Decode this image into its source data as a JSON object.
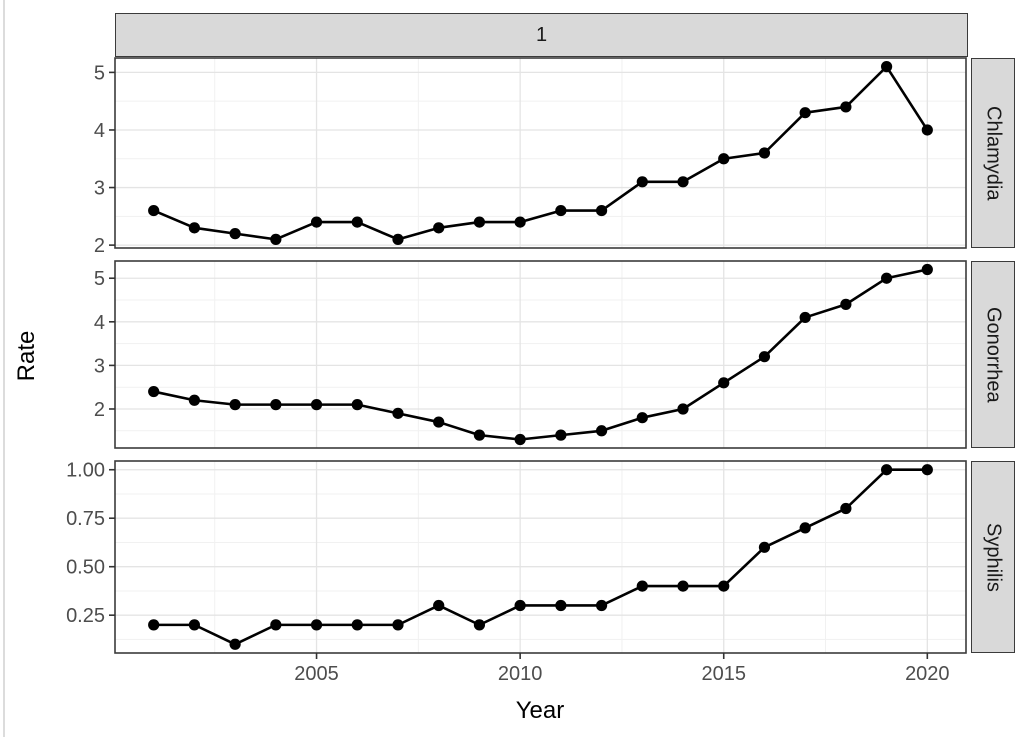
{
  "figure": {
    "viewer_background": "#ffffff",
    "frame_line_color": "#dcdcdc"
  },
  "chart_data": {
    "type": "line",
    "title": "",
    "facet_column_label": "1",
    "xlabel": "Year",
    "ylabel": "Rate",
    "legend": "none",
    "grid": "on",
    "x": [
      2001,
      2002,
      2003,
      2004,
      2005,
      2006,
      2007,
      2008,
      2009,
      2010,
      2011,
      2012,
      2013,
      2014,
      2015,
      2016,
      2017,
      2018,
      2019,
      2020
    ],
    "x_ticks": [
      2005,
      2010,
      2015,
      2020
    ],
    "x_tick_labels": [
      "2005",
      "2010",
      "2015",
      "2020"
    ],
    "x_minor_ticks": [
      2002.5,
      2007.5,
      2012.5,
      2017.5
    ],
    "xlim": [
      2000.05,
      2020.95
    ],
    "series_style": {
      "color": "#000000",
      "point_shape": "circle"
    },
    "facets": [
      {
        "label": "Chlamydia",
        "values": [
          2.6,
          2.3,
          2.2,
          2.1,
          2.4,
          2.4,
          2.1,
          2.3,
          2.4,
          2.4,
          2.6,
          2.6,
          3.1,
          3.1,
          3.5,
          3.6,
          4.3,
          4.4,
          5.1,
          4.0
        ],
        "y_ticks": [
          2,
          3,
          4,
          5
        ],
        "y_tick_labels": [
          "2",
          "3",
          "4",
          "5"
        ],
        "y_minor_ticks": [
          2.5,
          3.5,
          4.5
        ],
        "ylim": [
          1.95,
          5.25
        ]
      },
      {
        "label": "Gonorrhea",
        "values": [
          2.4,
          2.2,
          2.1,
          2.1,
          2.1,
          2.1,
          1.9,
          1.7,
          1.4,
          1.3,
          1.4,
          1.5,
          1.8,
          2.0,
          2.6,
          3.2,
          4.1,
          4.4,
          5.0,
          5.2
        ],
        "y_ticks": [
          2,
          3,
          4,
          5
        ],
        "y_tick_labels": [
          "2",
          "3",
          "4",
          "5"
        ],
        "y_minor_ticks": [
          1.5,
          2.5,
          3.5,
          4.5
        ],
        "ylim": [
          1.105,
          5.395
        ]
      },
      {
        "label": "Syphilis",
        "values": [
          0.2,
          0.2,
          0.1,
          0.2,
          0.2,
          0.2,
          0.2,
          0.3,
          0.2,
          0.3,
          0.3,
          0.3,
          0.4,
          0.4,
          0.4,
          0.6,
          0.7,
          0.8,
          1.0,
          1.0
        ],
        "y_ticks": [
          0.25,
          0.5,
          0.75,
          1.0
        ],
        "y_tick_labels": [
          "0.25",
          "0.50",
          "0.75",
          "1.00"
        ],
        "y_minor_ticks": [
          0.125,
          0.375,
          0.625,
          0.875
        ],
        "ylim": [
          0.055,
          1.045
        ]
      }
    ],
    "theme": {
      "strip_fill": "#d9d9d9",
      "strip_border": "#3b3b3b",
      "strip_text_color": "#1a1a1a",
      "panel_background": "#ffffff",
      "panel_border": "#3b3b3b",
      "grid_major_color": "#e4e4e4",
      "grid_minor_color": "#f1f1f1",
      "tick_color": "#333333",
      "tick_label_color": "#4d4d4d",
      "axis_title_color": "#000000"
    }
  }
}
